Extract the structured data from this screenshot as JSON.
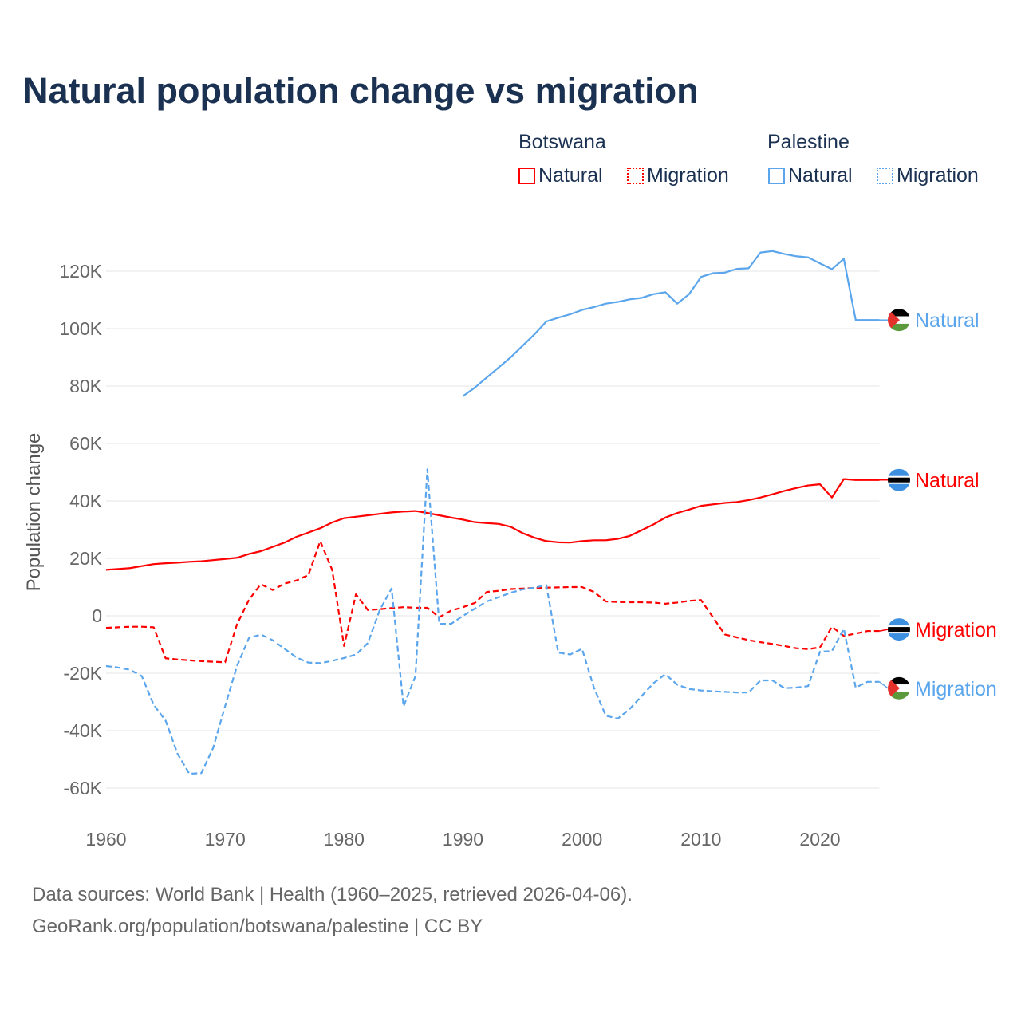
{
  "title": "Natural population change vs migration",
  "legend": {
    "groups": [
      {
        "country": "Botswana",
        "color": "#ff0000",
        "items": [
          "Natural",
          "Migration"
        ]
      },
      {
        "country": "Palestine",
        "color": "#5aa5ec",
        "items": [
          "Natural",
          "Migration"
        ]
      }
    ]
  },
  "footer": {
    "line1": "Data sources: World Bank | Health (1960–2025, retrieved 2026-04-06).",
    "line2": "GeoRank.org/population/botswana/palestine | CC BY"
  },
  "chart_data": {
    "type": "line",
    "title": "Natural population change vs migration",
    "xlabel": "",
    "ylabel": "Population change",
    "xlim": [
      1960,
      2025
    ],
    "ylim": [
      -70000,
      130000
    ],
    "xticks": [
      1960,
      1970,
      1980,
      1990,
      2000,
      2010,
      2020
    ],
    "xtick_labels": [
      "1960",
      "1970",
      "1980",
      "1990",
      "2000",
      "2010",
      "2020"
    ],
    "yticks": [
      -60000,
      -40000,
      -20000,
      0,
      20000,
      40000,
      60000,
      80000,
      100000,
      120000
    ],
    "ytick_labels": [
      "-60K",
      "-40K",
      "-20K",
      "0",
      "20K",
      "40K",
      "60K",
      "80K",
      "100K",
      "120K"
    ],
    "grid": true,
    "legend_position": "top-right",
    "series": [
      {
        "name": "Botswana Natural",
        "label": "Natural",
        "color": "#ff0000",
        "dash": false,
        "flag": "botswana",
        "start": 1960,
        "values": [
          16,
          16.3,
          16.6,
          17.3,
          18,
          18.3,
          18.5,
          18.8,
          19,
          19.4,
          19.8,
          20.2,
          21.5,
          22.5,
          24,
          25.5,
          27.5,
          29,
          30.5,
          32.5,
          34,
          34.5,
          35,
          35.5,
          36,
          36.3,
          36.5,
          35.8,
          35,
          34.2,
          33.5,
          32.6,
          32.3,
          32,
          31,
          28.8,
          27.2,
          26,
          25.6,
          25.5,
          26,
          26.3,
          26.3,
          26.8,
          27.8,
          29.8,
          31.8,
          34.2,
          35.8,
          37,
          38.3,
          38.8,
          39.3,
          39.6,
          40.3,
          41.2,
          42.3,
          43.5,
          44.5,
          45.4,
          45.8,
          41.2,
          47.6,
          47.3,
          47.3,
          47.3
        ]
      },
      {
        "name": "Botswana Migration",
        "label": "Migration",
        "color": "#ff0000",
        "dash": true,
        "flag": "botswana",
        "start": 1960,
        "values": [
          -4.2,
          -4,
          -3.8,
          -3.8,
          -4,
          -14.8,
          -15.2,
          -15.5,
          -15.8,
          -16,
          -16.2,
          -3,
          5.5,
          11,
          9,
          11.2,
          12.3,
          14.2,
          26,
          16,
          -10.5,
          7.5,
          2,
          2.3,
          2.7,
          3,
          2.8,
          2.8,
          -0.5,
          1.8,
          3,
          4.5,
          8.3,
          8.7,
          9.3,
          9.5,
          9.7,
          9.8,
          9.9,
          10,
          10,
          8.3,
          5,
          4.8,
          4.7,
          4.7,
          4.6,
          4.2,
          4.6,
          5.2,
          5.5,
          -0.5,
          -6.5,
          -7.5,
          -8.5,
          -9.2,
          -9.8,
          -10.5,
          -11.3,
          -11.6,
          -11,
          -3.8,
          -7,
          -6.2,
          -5.3,
          -5.3
        ]
      },
      {
        "name": "Palestine Natural",
        "label": "Natural",
        "color": "#5aa5ec",
        "dash": false,
        "flag": "palestine",
        "start": 1990,
        "values": [
          76.5,
          79.5,
          83,
          86.5,
          90,
          94,
          98,
          102.5,
          103.8,
          105,
          106.5,
          107.5,
          108.7,
          109.3,
          110.2,
          110.7,
          112,
          112.7,
          108.7,
          112,
          118,
          119.3,
          119.5,
          120.8,
          121,
          126.5,
          127,
          126,
          125.2,
          124.8,
          122.7,
          120.7,
          124.3,
          103,
          103,
          103
        ]
      },
      {
        "name": "Palestine Migration",
        "label": "Migration",
        "color": "#5aa5ec",
        "dash": true,
        "flag": "palestine",
        "start": 1960,
        "values": [
          -17.5,
          -18,
          -18.8,
          -21,
          -31,
          -36.5,
          -48,
          -55,
          -54.8,
          -46,
          -31.5,
          -17.5,
          -7.8,
          -6.5,
          -8.5,
          -11.5,
          -14.5,
          -16.3,
          -16.5,
          -15.7,
          -14.7,
          -13.5,
          -9.5,
          2,
          9.5,
          -31.5,
          -21,
          51,
          -2.8,
          -2.8,
          0,
          2.5,
          5,
          6.5,
          8,
          9.2,
          9.8,
          10.7,
          -12.8,
          -13.5,
          -11.5,
          -25,
          -34.8,
          -35.8,
          -32.5,
          -28,
          -23.5,
          -20.3,
          -24,
          -25.5,
          -26,
          -26.3,
          -26.5,
          -26.7,
          -26.7,
          -22.5,
          -22.5,
          -25.2,
          -25,
          -24.5,
          -12.5,
          -12.3,
          -4.5,
          -25,
          -23,
          -23
        ]
      }
    ],
    "value_unit": "thousands"
  }
}
